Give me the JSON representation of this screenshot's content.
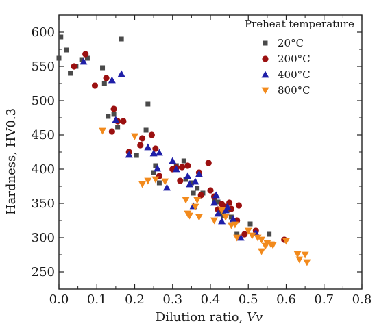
{
  "chart_data": {
    "type": "scatter",
    "title": "",
    "xlabel": "Dilution ratio, ",
    "xlabel_italic": "Vv",
    "ylabel": "Hardness, HV0.3",
    "xlim": [
      0.0,
      0.8
    ],
    "ylim": [
      225,
      625
    ],
    "x_ticks": [
      "0.0",
      "0.1",
      "0.2",
      "0.3",
      "0.4",
      "0.5",
      "0.6",
      "0.7",
      "0.8"
    ],
    "y_ticks": [
      "250",
      "300",
      "350",
      "400",
      "450",
      "500",
      "550",
      "600"
    ],
    "grid": false,
    "legend": {
      "title": "Preheat temperature",
      "placement": "top-right"
    },
    "series": [
      {
        "name": "20°C",
        "marker": "square",
        "color": "#4a4a4a",
        "points": [
          [
            0.005,
            593
          ],
          [
            0.0,
            562
          ],
          [
            0.02,
            574
          ],
          [
            0.03,
            540
          ],
          [
            0.045,
            550
          ],
          [
            0.06,
            560
          ],
          [
            0.075,
            562
          ],
          [
            0.115,
            548
          ],
          [
            0.12,
            525
          ],
          [
            0.13,
            477
          ],
          [
            0.145,
            480
          ],
          [
            0.155,
            461
          ],
          [
            0.165,
            590
          ],
          [
            0.23,
            457
          ],
          [
            0.235,
            495
          ],
          [
            0.205,
            420
          ],
          [
            0.25,
            395
          ],
          [
            0.255,
            405
          ],
          [
            0.265,
            380
          ],
          [
            0.31,
            405
          ],
          [
            0.33,
            412
          ],
          [
            0.335,
            385
          ],
          [
            0.35,
            380
          ],
          [
            0.355,
            365
          ],
          [
            0.365,
            372
          ],
          [
            0.38,
            365
          ],
          [
            0.41,
            355
          ],
          [
            0.42,
            352
          ],
          [
            0.43,
            335
          ],
          [
            0.435,
            332
          ],
          [
            0.445,
            340
          ],
          [
            0.455,
            330
          ],
          [
            0.47,
            305
          ],
          [
            0.505,
            320
          ],
          [
            0.52,
            310
          ],
          [
            0.555,
            305
          ]
        ]
      },
      {
        "name": "200°C",
        "marker": "circle",
        "color": "#9b1010",
        "points": [
          [
            0.04,
            550
          ],
          [
            0.07,
            568
          ],
          [
            0.095,
            522
          ],
          [
            0.125,
            533
          ],
          [
            0.14,
            455
          ],
          [
            0.145,
            488
          ],
          [
            0.155,
            470
          ],
          [
            0.17,
            470
          ],
          [
            0.185,
            425
          ],
          [
            0.215,
            435
          ],
          [
            0.22,
            445
          ],
          [
            0.245,
            450
          ],
          [
            0.255,
            430
          ],
          [
            0.265,
            390
          ],
          [
            0.3,
            400
          ],
          [
            0.31,
            402
          ],
          [
            0.32,
            383
          ],
          [
            0.325,
            403
          ],
          [
            0.34,
            405
          ],
          [
            0.37,
            395
          ],
          [
            0.375,
            362
          ],
          [
            0.395,
            409
          ],
          [
            0.4,
            369
          ],
          [
            0.41,
            360
          ],
          [
            0.42,
            341
          ],
          [
            0.43,
            349
          ],
          [
            0.44,
            345
          ],
          [
            0.45,
            351
          ],
          [
            0.455,
            342
          ],
          [
            0.47,
            325
          ],
          [
            0.475,
            347
          ],
          [
            0.49,
            305
          ],
          [
            0.52,
            310
          ],
          [
            0.595,
            297
          ]
        ]
      },
      {
        "name": "400°C",
        "marker": "triangle-up",
        "color": "#1f1fa8",
        "points": [
          [
            0.065,
            557
          ],
          [
            0.14,
            530
          ],
          [
            0.15,
            472
          ],
          [
            0.165,
            539
          ],
          [
            0.185,
            421
          ],
          [
            0.235,
            432
          ],
          [
            0.25,
            423
          ],
          [
            0.265,
            424
          ],
          [
            0.26,
            401
          ],
          [
            0.285,
            373
          ],
          [
            0.3,
            412
          ],
          [
            0.31,
            400
          ],
          [
            0.34,
            390
          ],
          [
            0.345,
            378
          ],
          [
            0.355,
            346
          ],
          [
            0.36,
            382
          ],
          [
            0.37,
            393
          ],
          [
            0.41,
            351
          ],
          [
            0.415,
            362
          ],
          [
            0.42,
            335
          ],
          [
            0.43,
            324
          ],
          [
            0.44,
            340
          ],
          [
            0.445,
            345
          ],
          [
            0.46,
            327
          ],
          [
            0.48,
            300
          ],
          [
            0.52,
            307
          ]
        ]
      },
      {
        "name": "800°C",
        "marker": "triangle-down",
        "color": "#f28a1c",
        "points": [
          [
            0.115,
            456
          ],
          [
            0.2,
            448
          ],
          [
            0.22,
            378
          ],
          [
            0.235,
            383
          ],
          [
            0.255,
            385
          ],
          [
            0.28,
            382
          ],
          [
            0.335,
            355
          ],
          [
            0.34,
            335
          ],
          [
            0.345,
            332
          ],
          [
            0.36,
            345
          ],
          [
            0.365,
            355
          ],
          [
            0.37,
            330
          ],
          [
            0.41,
            325
          ],
          [
            0.43,
            340
          ],
          [
            0.44,
            330
          ],
          [
            0.455,
            318
          ],
          [
            0.465,
            319
          ],
          [
            0.47,
            300
          ],
          [
            0.5,
            310
          ],
          [
            0.51,
            303
          ],
          [
            0.525,
            300
          ],
          [
            0.535,
            297
          ],
          [
            0.535,
            280
          ],
          [
            0.545,
            288
          ],
          [
            0.55,
            292
          ],
          [
            0.56,
            290
          ],
          [
            0.565,
            289
          ],
          [
            0.6,
            295
          ],
          [
            0.63,
            276
          ],
          [
            0.635,
            268
          ],
          [
            0.65,
            275
          ],
          [
            0.655,
            264
          ]
        ]
      }
    ]
  }
}
